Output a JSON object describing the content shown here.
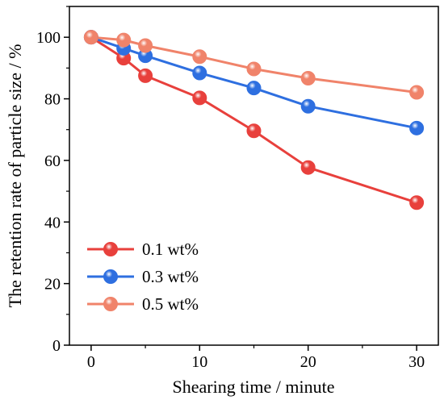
{
  "chart_data": {
    "type": "line",
    "xlabel": "Shearing time / minute",
    "ylabel": "The retention rate of particle size / %",
    "xlim": [
      -2,
      32
    ],
    "ylim": [
      0,
      110
    ],
    "x_ticks": [
      0,
      10,
      20,
      30
    ],
    "y_ticks": [
      0,
      20,
      40,
      60,
      80,
      100
    ],
    "grid": false,
    "legend_position": "bottom-left",
    "series": [
      {
        "name": "0.1 wt%",
        "color": "#e8403c",
        "x": [
          0,
          3,
          5,
          10,
          15,
          20,
          30
        ],
        "values": [
          100,
          93.2,
          87.5,
          80.3,
          69.6,
          57.7,
          46.3
        ]
      },
      {
        "name": "0.3 wt%",
        "color": "#2e6fe0",
        "x": [
          0,
          3,
          5,
          10,
          15,
          20,
          30
        ],
        "values": [
          100,
          96.4,
          94,
          88.4,
          83.5,
          77.6,
          70.5
        ]
      },
      {
        "name": "0.5 wt%",
        "color": "#f0836a",
        "x": [
          0,
          3,
          5,
          10,
          15,
          20,
          30
        ],
        "values": [
          100,
          99.1,
          97.3,
          93.7,
          89.7,
          86.7,
          82.1
        ]
      }
    ]
  }
}
